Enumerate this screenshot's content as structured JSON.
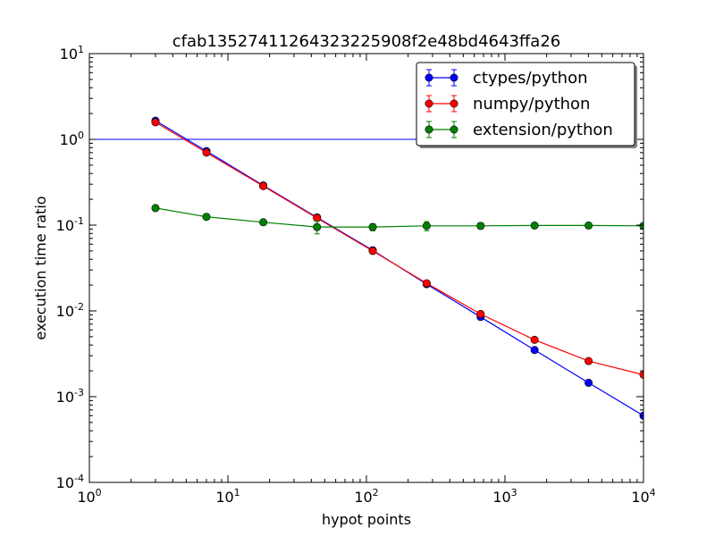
{
  "chart_data": {
    "type": "line",
    "title": "cfab1352741126432322590​8f2e48bd4643ffa26",
    "xlabel": "hypot points",
    "ylabel": "execution time ratio",
    "xscale": "log",
    "yscale": "log",
    "xlim": [
      1,
      10000
    ],
    "ylim": [
      0.0001,
      10
    ],
    "x_ticks": [
      {
        "base": "10",
        "exp": "0"
      },
      {
        "base": "10",
        "exp": "1"
      },
      {
        "base": "10",
        "exp": "2"
      },
      {
        "base": "10",
        "exp": "3"
      },
      {
        "base": "10",
        "exp": "4"
      }
    ],
    "y_ticks": [
      {
        "base": "10",
        "exp": "-4"
      },
      {
        "base": "10",
        "exp": "-3"
      },
      {
        "base": "10",
        "exp": "-2"
      },
      {
        "base": "10",
        "exp": "-1"
      },
      {
        "base": "10",
        "exp": "0"
      },
      {
        "base": "10",
        "exp": "1"
      }
    ],
    "reference_line": {
      "y": 1.0,
      "color": "#0000ff"
    },
    "legend_position": "top-right",
    "grid": false,
    "x": [
      3,
      7,
      18,
      44,
      111,
      272,
      667,
      1636,
      4014,
      10000
    ],
    "series": [
      {
        "name": "ctypes/python",
        "color": "#0000ff",
        "values": [
          1.65,
          0.73,
          0.29,
          0.123,
          0.051,
          0.0205,
          0.0085,
          0.0035,
          0.00145,
          0.0006
        ],
        "errors": [
          0.06,
          0.02,
          0.008,
          0.004,
          0.002,
          0.0007,
          0.0003,
          0.0001,
          5e-05,
          2e-05
        ]
      },
      {
        "name": "numpy/python",
        "color": "#ff0000",
        "values": [
          1.58,
          0.7,
          0.285,
          0.121,
          0.05,
          0.021,
          0.0092,
          0.0046,
          0.0026,
          0.0018
        ],
        "errors": [
          0.06,
          0.02,
          0.008,
          0.004,
          0.002,
          0.0007,
          0.0003,
          0.0002,
          0.0001,
          8e-05
        ]
      },
      {
        "name": "extension/python",
        "color": "#008000",
        "values": [
          0.158,
          0.125,
          0.108,
          0.095,
          0.095,
          0.098,
          0.098,
          0.099,
          0.099,
          0.098
        ],
        "errors": [
          0.005,
          0.004,
          0.004,
          0.016,
          0.009,
          0.012,
          0.008,
          0.003,
          0.003,
          0.002
        ]
      }
    ]
  }
}
